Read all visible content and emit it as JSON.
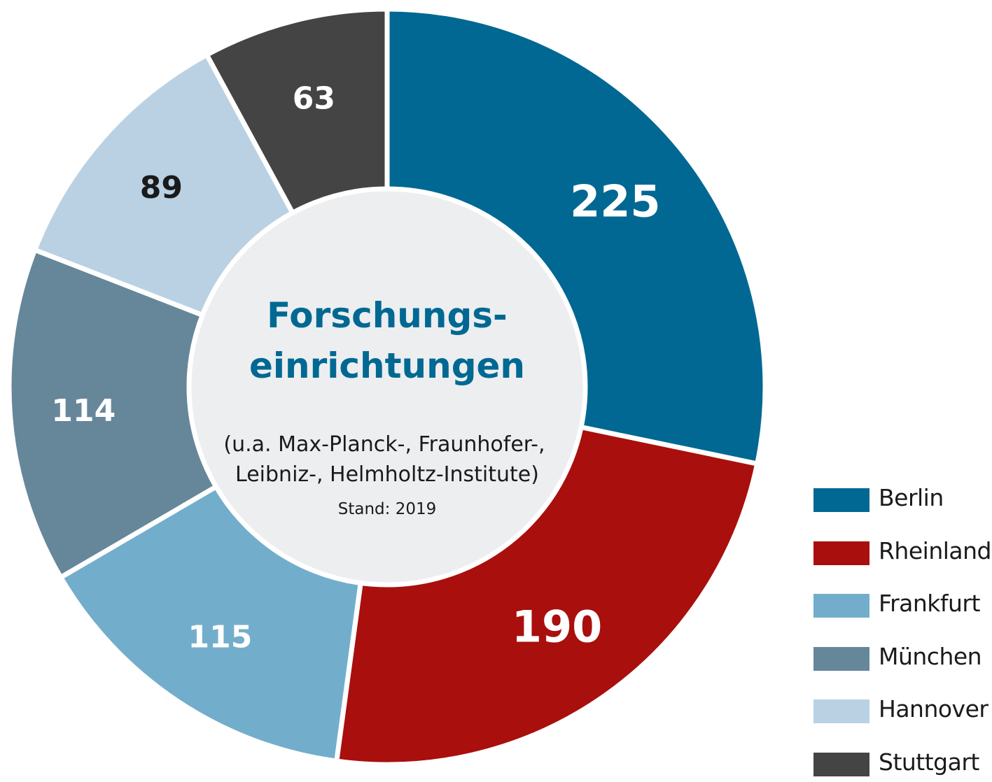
{
  "chart_data": {
    "type": "pie",
    "categories": [
      "Berlin",
      "Rheinland",
      "Frankfurt",
      "München",
      "Hannover",
      "Stuttgart"
    ],
    "values": [
      225,
      190,
      115,
      114,
      89,
      63
    ],
    "colors": [
      "#006892",
      "#a90f0c",
      "#72aecb",
      "#66879a",
      "#b9d1e3",
      "#444444"
    ],
    "label_colors": [
      "#ffffff",
      "#ffffff",
      "#ffffff",
      "#ffffff",
      "#1a1a1a",
      "#ffffff"
    ],
    "title": "Forschungs-\neinrichtungen",
    "subtitle": "(u.a. Max-Planck-, Fraunhofer-,\nLeibniz-, Helmholtz-Institute)",
    "note": "Stand: 2019",
    "legend_position": "bottom-right",
    "title_color": "#006892",
    "center_fill": "#eceef0"
  }
}
